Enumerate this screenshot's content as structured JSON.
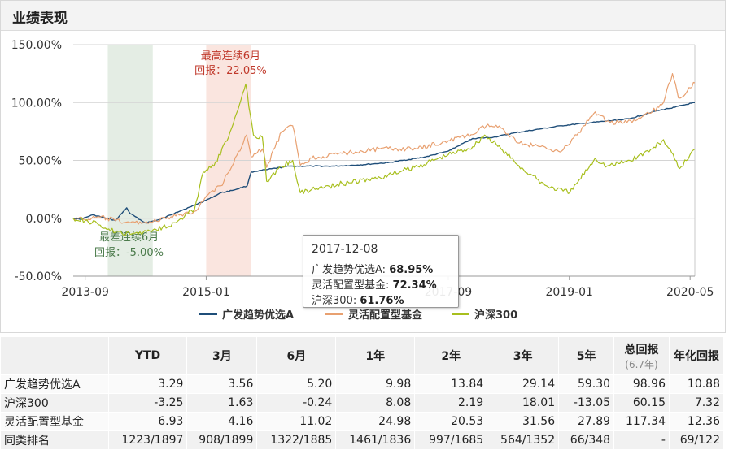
{
  "section_title": "业绩表现",
  "colors": {
    "fund": "#1f4e79",
    "category": "#e8a070",
    "index": "#a8bf1e",
    "best_band": "#f9e0d9",
    "worst_band": "#dfeadf",
    "best_text": "#c0392b",
    "worst_text": "#4a7a4a"
  },
  "chart_data": {
    "type": "line",
    "x_tick_labels": [
      "2013-09",
      "2015-01",
      "2017-09",
      "2019-01",
      "2020-05"
    ],
    "y_tick_labels": [
      "150.00%",
      "100.00%",
      "50.00%",
      "0.00%",
      "-50.00%"
    ],
    "ylim": [
      -50,
      150
    ],
    "xlim": [
      "2013-07-15",
      "2020-05-20"
    ],
    "grid": "horizontal",
    "legend_position": "bottom",
    "series": [
      {
        "name": "广发趋势优选A",
        "points": [
          [
            "2013-07-15",
            0
          ],
          [
            "2013-08-15",
            -1
          ],
          [
            "2013-10-01",
            3
          ],
          [
            "2014-01-01",
            -2
          ],
          [
            "2014-02-15",
            9
          ],
          [
            "2014-03-01",
            4
          ],
          [
            "2014-05-01",
            -4
          ],
          [
            "2014-07-01",
            -1
          ],
          [
            "2014-09-01",
            5
          ],
          [
            "2014-11-01",
            10
          ],
          [
            "2015-01-15",
            17
          ],
          [
            "2015-03-01",
            22
          ],
          [
            "2015-04-15",
            24
          ],
          [
            "2015-06-15",
            28
          ],
          [
            "2015-07-01",
            40
          ],
          [
            "2015-09-01",
            42
          ],
          [
            "2015-12-01",
            45
          ],
          [
            "2016-03-01",
            45
          ],
          [
            "2016-06-01",
            45
          ],
          [
            "2016-09-01",
            46
          ],
          [
            "2017-01-01",
            48
          ],
          [
            "2017-06-01",
            53
          ],
          [
            "2017-09-01",
            58
          ],
          [
            "2017-12-08",
            68.95
          ],
          [
            "2018-03-01",
            70
          ],
          [
            "2018-06-01",
            74
          ],
          [
            "2018-09-01",
            77
          ],
          [
            "2018-12-01",
            80
          ],
          [
            "2019-03-01",
            82
          ],
          [
            "2019-06-01",
            84
          ],
          [
            "2019-09-01",
            86
          ],
          [
            "2019-12-01",
            92
          ],
          [
            "2020-03-01",
            96
          ],
          [
            "2020-05-20",
            100
          ]
        ]
      },
      {
        "name": "灵活配置型基金",
        "points": [
          [
            "2013-07-15",
            0
          ],
          [
            "2013-09-01",
            -1
          ],
          [
            "2013-11-01",
            1
          ],
          [
            "2014-01-01",
            -2
          ],
          [
            "2014-03-01",
            -4
          ],
          [
            "2014-06-01",
            -3
          ],
          [
            "2014-09-01",
            2
          ],
          [
            "2014-11-15",
            6
          ],
          [
            "2015-01-15",
            22
          ],
          [
            "2015-03-01",
            28
          ],
          [
            "2015-04-15",
            45
          ],
          [
            "2015-06-12",
            72
          ],
          [
            "2015-07-01",
            53
          ],
          [
            "2015-08-15",
            60
          ],
          [
            "2015-09-01",
            44
          ],
          [
            "2015-11-01",
            75
          ],
          [
            "2015-12-15",
            80
          ],
          [
            "2016-01-15",
            46
          ],
          [
            "2016-03-01",
            52
          ],
          [
            "2016-07-01",
            56
          ],
          [
            "2016-12-01",
            60
          ],
          [
            "2017-05-01",
            60
          ],
          [
            "2017-09-01",
            67
          ],
          [
            "2017-12-08",
            72.34
          ],
          [
            "2018-02-01",
            80
          ],
          [
            "2018-04-01",
            78
          ],
          [
            "2018-06-15",
            65
          ],
          [
            "2018-09-01",
            62
          ],
          [
            "2018-12-01",
            58
          ],
          [
            "2019-02-01",
            72
          ],
          [
            "2019-04-15",
            92
          ],
          [
            "2019-06-01",
            84
          ],
          [
            "2019-08-01",
            82
          ],
          [
            "2019-10-01",
            85
          ],
          [
            "2019-12-01",
            92
          ],
          [
            "2020-01-15",
            100
          ],
          [
            "2020-02-20",
            125
          ],
          [
            "2020-03-15",
            104
          ],
          [
            "2020-04-20",
            110
          ],
          [
            "2020-05-20",
            117
          ]
        ]
      },
      {
        "name": "沪深300",
        "points": [
          [
            "2013-07-15",
            0
          ],
          [
            "2013-09-01",
            -2
          ],
          [
            "2013-11-01",
            -6
          ],
          [
            "2014-01-01",
            -12
          ],
          [
            "2014-03-01",
            -14
          ],
          [
            "2014-06-01",
            -10
          ],
          [
            "2014-09-01",
            -4
          ],
          [
            "2014-11-15",
            8
          ],
          [
            "2014-12-20",
            40
          ],
          [
            "2015-02-01",
            45
          ],
          [
            "2015-04-01",
            70
          ],
          [
            "2015-06-09",
            116
          ],
          [
            "2015-07-10",
            72
          ],
          [
            "2015-08-15",
            70
          ],
          [
            "2015-09-01",
            32
          ],
          [
            "2015-11-01",
            45
          ],
          [
            "2015-12-15",
            50
          ],
          [
            "2016-01-15",
            22
          ],
          [
            "2016-03-01",
            25
          ],
          [
            "2016-07-01",
            30
          ],
          [
            "2016-12-01",
            35
          ],
          [
            "2017-05-01",
            45
          ],
          [
            "2017-09-01",
            55
          ],
          [
            "2017-12-08",
            61.76
          ],
          [
            "2018-01-25",
            72
          ],
          [
            "2018-04-01",
            60
          ],
          [
            "2018-07-01",
            42
          ],
          [
            "2018-10-01",
            28
          ],
          [
            "2019-01-03",
            22
          ],
          [
            "2019-04-15",
            52
          ],
          [
            "2019-06-01",
            45
          ],
          [
            "2019-09-01",
            50
          ],
          [
            "2019-12-01",
            60
          ],
          [
            "2020-01-15",
            68
          ],
          [
            "2020-03-20",
            43
          ],
          [
            "2020-05-20",
            60
          ]
        ]
      }
    ],
    "bands": [
      {
        "from": "2013-12-01",
        "to": "2014-05-31",
        "label1": "最差连续6月",
        "label2": "回报：-5.00%",
        "kind": "worst"
      },
      {
        "from": "2015-01-01",
        "to": "2015-06-30",
        "label1": "最高连续6月",
        "label2": "回报：22.05%",
        "kind": "best"
      }
    ],
    "tooltip": {
      "date": "2017-12-08",
      "rows": [
        {
          "label": "广发趋势优选A",
          "value": "68.95%"
        },
        {
          "label": "灵活配置型基金",
          "value": "72.34%"
        },
        {
          "label": "沪深300",
          "value": "61.76%"
        }
      ]
    }
  },
  "table": {
    "headers": [
      "",
      "YTD",
      "3月",
      "6月",
      "1年",
      "2年",
      "3年",
      "5年",
      "总回报",
      "年化回报"
    ],
    "total_sub": "(6.7年)",
    "rows": [
      [
        "广发趋势优选A",
        "3.29",
        "3.56",
        "5.20",
        "9.98",
        "13.84",
        "29.14",
        "59.30",
        "98.96",
        "10.88"
      ],
      [
        "沪深300",
        "-3.25",
        "1.63",
        "-0.24",
        "8.08",
        "2.19",
        "18.01",
        "-13.05",
        "60.15",
        "7.32"
      ],
      [
        "灵活配置型基金",
        "6.93",
        "4.16",
        "11.02",
        "24.98",
        "20.53",
        "31.56",
        "27.89",
        "117.34",
        "12.36"
      ],
      [
        "同类排名",
        "1223/1897",
        "908/1899",
        "1322/1885",
        "1461/1836",
        "997/1685",
        "564/1352",
        "66/348",
        "-",
        "69/122"
      ]
    ]
  }
}
